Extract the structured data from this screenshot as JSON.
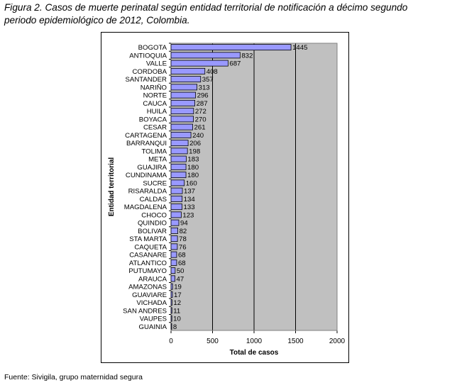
{
  "caption": {
    "figure_label": "Figura 2.",
    "line1_text": "Casos de muerte perinatal según entidad territorial de notificación a décimo segundo",
    "line2_text": "periodo epidemiológico de 2012, Colombia."
  },
  "source_note": "Fuente: Sivigila, grupo maternidad segura",
  "colors": {
    "plot_background": "#c0c0c0",
    "bar_fill": "#9999ff",
    "bar_stroke": "#000000",
    "gridline": "#000000"
  },
  "chart_data": {
    "type": "bar",
    "orientation": "horizontal",
    "title": "",
    "xlabel": "Total de casos",
    "ylabel": "Entidad territorial",
    "xlim": [
      0,
      2000
    ],
    "xticks": [
      "0",
      "500",
      "1000",
      "1500",
      "2000"
    ],
    "grid": "vertical",
    "categories": [
      "BOGOTA",
      "ANTIOQUIA",
      "VALLE",
      "CORDOBA",
      "SANTANDER",
      "NARIÑO",
      "NORTE",
      "CAUCA",
      "HUILA",
      "BOYACA",
      "CESAR",
      "CARTAGENA",
      "BARRANQUI",
      "TOLIMA",
      "META",
      "GUAJIRA",
      "CUNDINAMA",
      "SUCRE",
      "RISARALDA",
      "CALDAS",
      "MAGDALENA",
      "CHOCO",
      "QUINDIO",
      "BOLIVAR",
      "STA MARTA",
      "CAQUETA",
      "CASANARE",
      "ATLANTICO",
      "PUTUMAYO",
      "ARAUCA",
      "AMAZONAS",
      "GUAVIARE",
      "VICHADA",
      "SAN ANDRES",
      "VAUPES",
      "GUAINIA"
    ],
    "values": [
      1445,
      832,
      687,
      408,
      357,
      313,
      296,
      287,
      272,
      270,
      261,
      240,
      206,
      198,
      183,
      180,
      180,
      160,
      137,
      134,
      133,
      123,
      94,
      82,
      78,
      76,
      68,
      68,
      50,
      47,
      19,
      17,
      12,
      11,
      10,
      8
    ]
  }
}
